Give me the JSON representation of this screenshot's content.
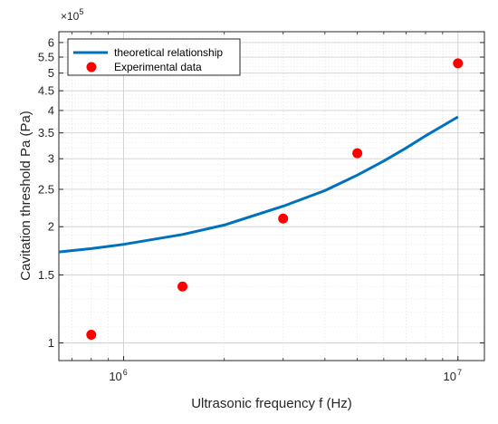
{
  "chart_data": {
    "type": "scatter",
    "xlabel": "Ultrasonic frequency f (Hz)",
    "ylabel": "Cavitation threshold Pa (Pa)",
    "x_scale": "log",
    "y_scale": "log",
    "xlim": [
      640000,
      12000000
    ],
    "ylim": [
      90000,
      640000
    ],
    "y_multiplier": {
      "base": "×10",
      "exponent": "5"
    },
    "x_ticks": [
      {
        "value": 1000000,
        "base": "10",
        "exp": "6"
      },
      {
        "value": 10000000,
        "base": "10",
        "exp": "7"
      }
    ],
    "y_ticks": [
      {
        "value": 100000,
        "label": "1"
      },
      {
        "value": 150000,
        "label": "1.5"
      },
      {
        "value": 200000,
        "label": "2"
      },
      {
        "value": 250000,
        "label": "2.5"
      },
      {
        "value": 300000,
        "label": "3"
      },
      {
        "value": 350000,
        "label": "3.5"
      },
      {
        "value": 400000,
        "label": "4"
      },
      {
        "value": 450000,
        "label": "4.5"
      },
      {
        "value": 500000,
        "label": "5"
      },
      {
        "value": 550000,
        "label": "5.5"
      },
      {
        "value": 600000,
        "label": "6"
      }
    ],
    "grid": true,
    "legend_position": "top-left",
    "series": [
      {
        "name": "theoretical relationship",
        "kind": "line",
        "color": "#0072BD",
        "x": [
          640000,
          800000,
          1000000,
          1500000,
          2000000,
          3000000,
          4000000,
          5000000,
          6000000,
          7000000,
          8000000,
          10000000
        ],
        "y": [
          172000,
          175500,
          180000,
          191000,
          202000,
          226000,
          248000,
          272000,
          296000,
          320000,
          344000,
          385000
        ]
      },
      {
        "name": "Experimental data",
        "kind": "scatter",
        "color": "#FF0000",
        "x": [
          800000,
          1500000,
          3000000,
          5000000,
          10000000
        ],
        "y": [
          105000,
          140000,
          210000,
          310000,
          530000
        ]
      }
    ]
  }
}
